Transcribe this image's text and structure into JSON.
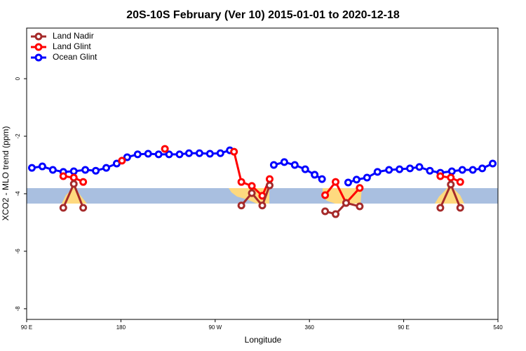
{
  "chart_data": {
    "type": "line",
    "title": "20S-10S February (Ver 10)   2015-01-01 to 2020-12-18",
    "xlabel": "Longitude",
    "ylabel": "XCO2 - MLO trend (ppm)",
    "xlim": [
      90,
      540
    ],
    "ylim": [
      -8.37,
      1.76
    ],
    "xticks": [
      {
        "value": 90,
        "label": "90 E"
      },
      180,
      {
        "value": 270,
        "label": "90 W"
      },
      360,
      {
        "value": 450,
        "label": "90 E"
      },
      540
    ],
    "yticks": [
      0,
      -2,
      -4,
      -6,
      -8
    ],
    "legend": "top-left",
    "series": [
      {
        "name": "Land Nadir",
        "color": "#a52a2a",
        "x": [
          125,
          135,
          144,
          235,
          295,
          305,
          315,
          322,
          340,
          375,
          385,
          395,
          408,
          445,
          485,
          495,
          504
        ],
        "values": [
          -4.49,
          -3.66,
          -4.49,
          null,
          -4.41,
          -3.98,
          -4.41,
          -3.71,
          null,
          -4.61,
          -4.71,
          -4.32,
          -4.44,
          null,
          -4.49,
          -3.68,
          -4.49
        ]
      },
      {
        "name": "Land Glint",
        "color": "#ff0000",
        "x": [
          125,
          135,
          144,
          160,
          181,
          200,
          222,
          255,
          288,
          295,
          305,
          315,
          322,
          340,
          375,
          385,
          395,
          408,
          445,
          485,
          495,
          504
        ],
        "values": [
          -3.39,
          -3.44,
          -3.59,
          null,
          -2.85,
          null,
          -2.44,
          null,
          -2.54,
          -3.59,
          -3.73,
          -4.07,
          -3.49,
          null,
          -4.05,
          -3.59,
          -4.32,
          -3.8,
          null,
          -3.39,
          -3.44,
          -3.59
        ]
      },
      {
        "name": "Ocean Glint",
        "color": "#0000ff",
        "x": [
          95,
          105,
          115,
          125,
          135,
          146,
          156,
          166,
          176,
          186,
          196,
          206,
          216,
          226,
          236,
          245,
          255,
          265,
          275,
          284,
          305,
          326,
          336,
          346,
          356,
          365,
          372,
          385,
          397,
          405,
          415,
          425,
          436,
          446,
          456,
          465,
          475,
          485,
          496,
          506,
          516,
          525,
          535
        ],
        "values": [
          -3.1,
          -3.05,
          -3.17,
          -3.24,
          -3.22,
          -3.17,
          -3.2,
          -3.1,
          -2.95,
          -2.73,
          -2.63,
          -2.61,
          -2.63,
          -2.63,
          -2.63,
          -2.59,
          -2.59,
          -2.61,
          -2.59,
          -2.49,
          null,
          -3.0,
          -2.9,
          -3.0,
          -3.15,
          -3.34,
          -3.49,
          null,
          -3.61,
          -3.51,
          -3.44,
          -3.24,
          -3.17,
          -3.15,
          -3.12,
          -3.07,
          -3.2,
          -3.27,
          -3.22,
          -3.17,
          -3.17,
          -3.12,
          -2.95
        ]
      }
    ]
  }
}
